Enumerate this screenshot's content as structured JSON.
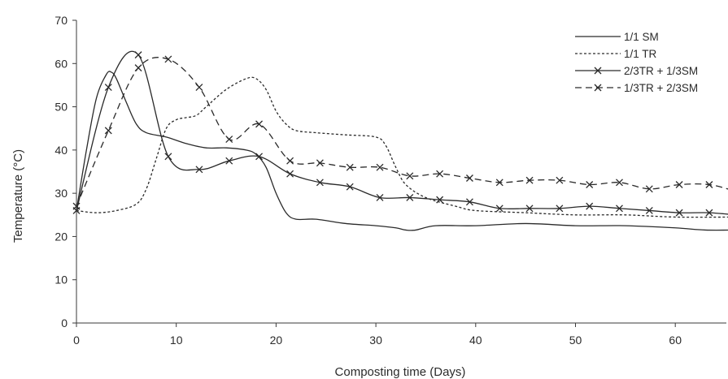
{
  "chart_data": {
    "type": "line",
    "title": "",
    "xlabel": "Composting time (Days)",
    "ylabel": "Temperature (°C)",
    "xlim": [
      0,
      66
    ],
    "ylim": [
      0,
      70
    ],
    "xticks": [
      0,
      10,
      20,
      30,
      40,
      50,
      60
    ],
    "yticks": [
      0,
      10,
      20,
      30,
      40,
      50,
      60,
      70
    ],
    "grid": false,
    "legend_position": "top-right",
    "series": [
      {
        "name": "1/1 SM",
        "style": "solid",
        "marker": "none",
        "color": "#2a2a2a",
        "x": [
          0,
          1,
          2,
          3,
          3.5,
          4,
          5,
          6,
          7,
          9,
          11,
          13,
          15,
          17,
          18,
          19,
          20,
          21,
          22,
          24,
          27,
          30,
          32,
          33,
          34,
          36,
          40,
          45,
          50,
          55,
          60,
          63,
          66
        ],
        "y": [
          26,
          40,
          52,
          57.5,
          58,
          56.5,
          51,
          46,
          44,
          43,
          41.5,
          40.5,
          40.5,
          40,
          39,
          36,
          30,
          25.5,
          24,
          24,
          23,
          22.5,
          22,
          21.5,
          21.5,
          22.5,
          22.5,
          23,
          22.5,
          22.5,
          22,
          21.5,
          21.5
        ]
      },
      {
        "name": "1/1 TR",
        "style": "dotted",
        "marker": "none",
        "color": "#2a2a2a",
        "x": [
          0,
          2,
          4,
          6,
          7,
          8,
          9,
          10,
          11,
          12,
          13,
          15,
          17,
          18,
          19,
          20,
          21,
          22,
          24,
          27,
          30,
          31,
          32,
          33,
          35,
          38,
          40,
          45,
          50,
          55,
          60,
          66
        ],
        "y": [
          26,
          25.5,
          26,
          27.5,
          31,
          38,
          45,
          47,
          47.5,
          48,
          50,
          54,
          56.5,
          56.5,
          54,
          49,
          46,
          44.5,
          44,
          43.5,
          43,
          41,
          36,
          32,
          29,
          27,
          26,
          25.5,
          25,
          25,
          24.5,
          24.5
        ]
      },
      {
        "name": "2/3TR + 1/3SM",
        "style": "solid",
        "marker": "x",
        "color": "#2a2a2a",
        "x": [
          0,
          3.2,
          6.2,
          9.2,
          12.3,
          15.3,
          18.3,
          21.4,
          24.4,
          27.4,
          30.4,
          33.4,
          36.4,
          39.4,
          42.4,
          45.4,
          48.4,
          51.4,
          54.4,
          57.4,
          60.4,
          63.4,
          66
        ],
        "y": [
          26,
          54.5,
          62,
          38.5,
          35.5,
          37.5,
          38.5,
          34.5,
          32.5,
          31.5,
          29,
          29,
          28.5,
          28,
          26.5,
          26.5,
          26.5,
          27,
          26.5,
          26,
          25.5,
          25.5,
          25
        ]
      },
      {
        "name": "1/3TR + 2/3SM",
        "style": "dashed",
        "marker": "x",
        "color": "#2a2a2a",
        "x": [
          0,
          3.2,
          6.2,
          9.2,
          12.3,
          15.3,
          18.3,
          21.4,
          24.4,
          27.4,
          30.4,
          33.4,
          36.4,
          39.4,
          42.4,
          45.4,
          48.4,
          51.4,
          54.4,
          57.4,
          60.4,
          63.4,
          66
        ],
        "y": [
          27,
          44.5,
          59,
          61,
          54.5,
          42.5,
          46,
          37.5,
          37,
          36,
          36,
          34,
          34.5,
          33.5,
          32.5,
          33,
          33,
          32,
          32.5,
          31,
          32,
          32,
          30.5
        ]
      }
    ]
  }
}
